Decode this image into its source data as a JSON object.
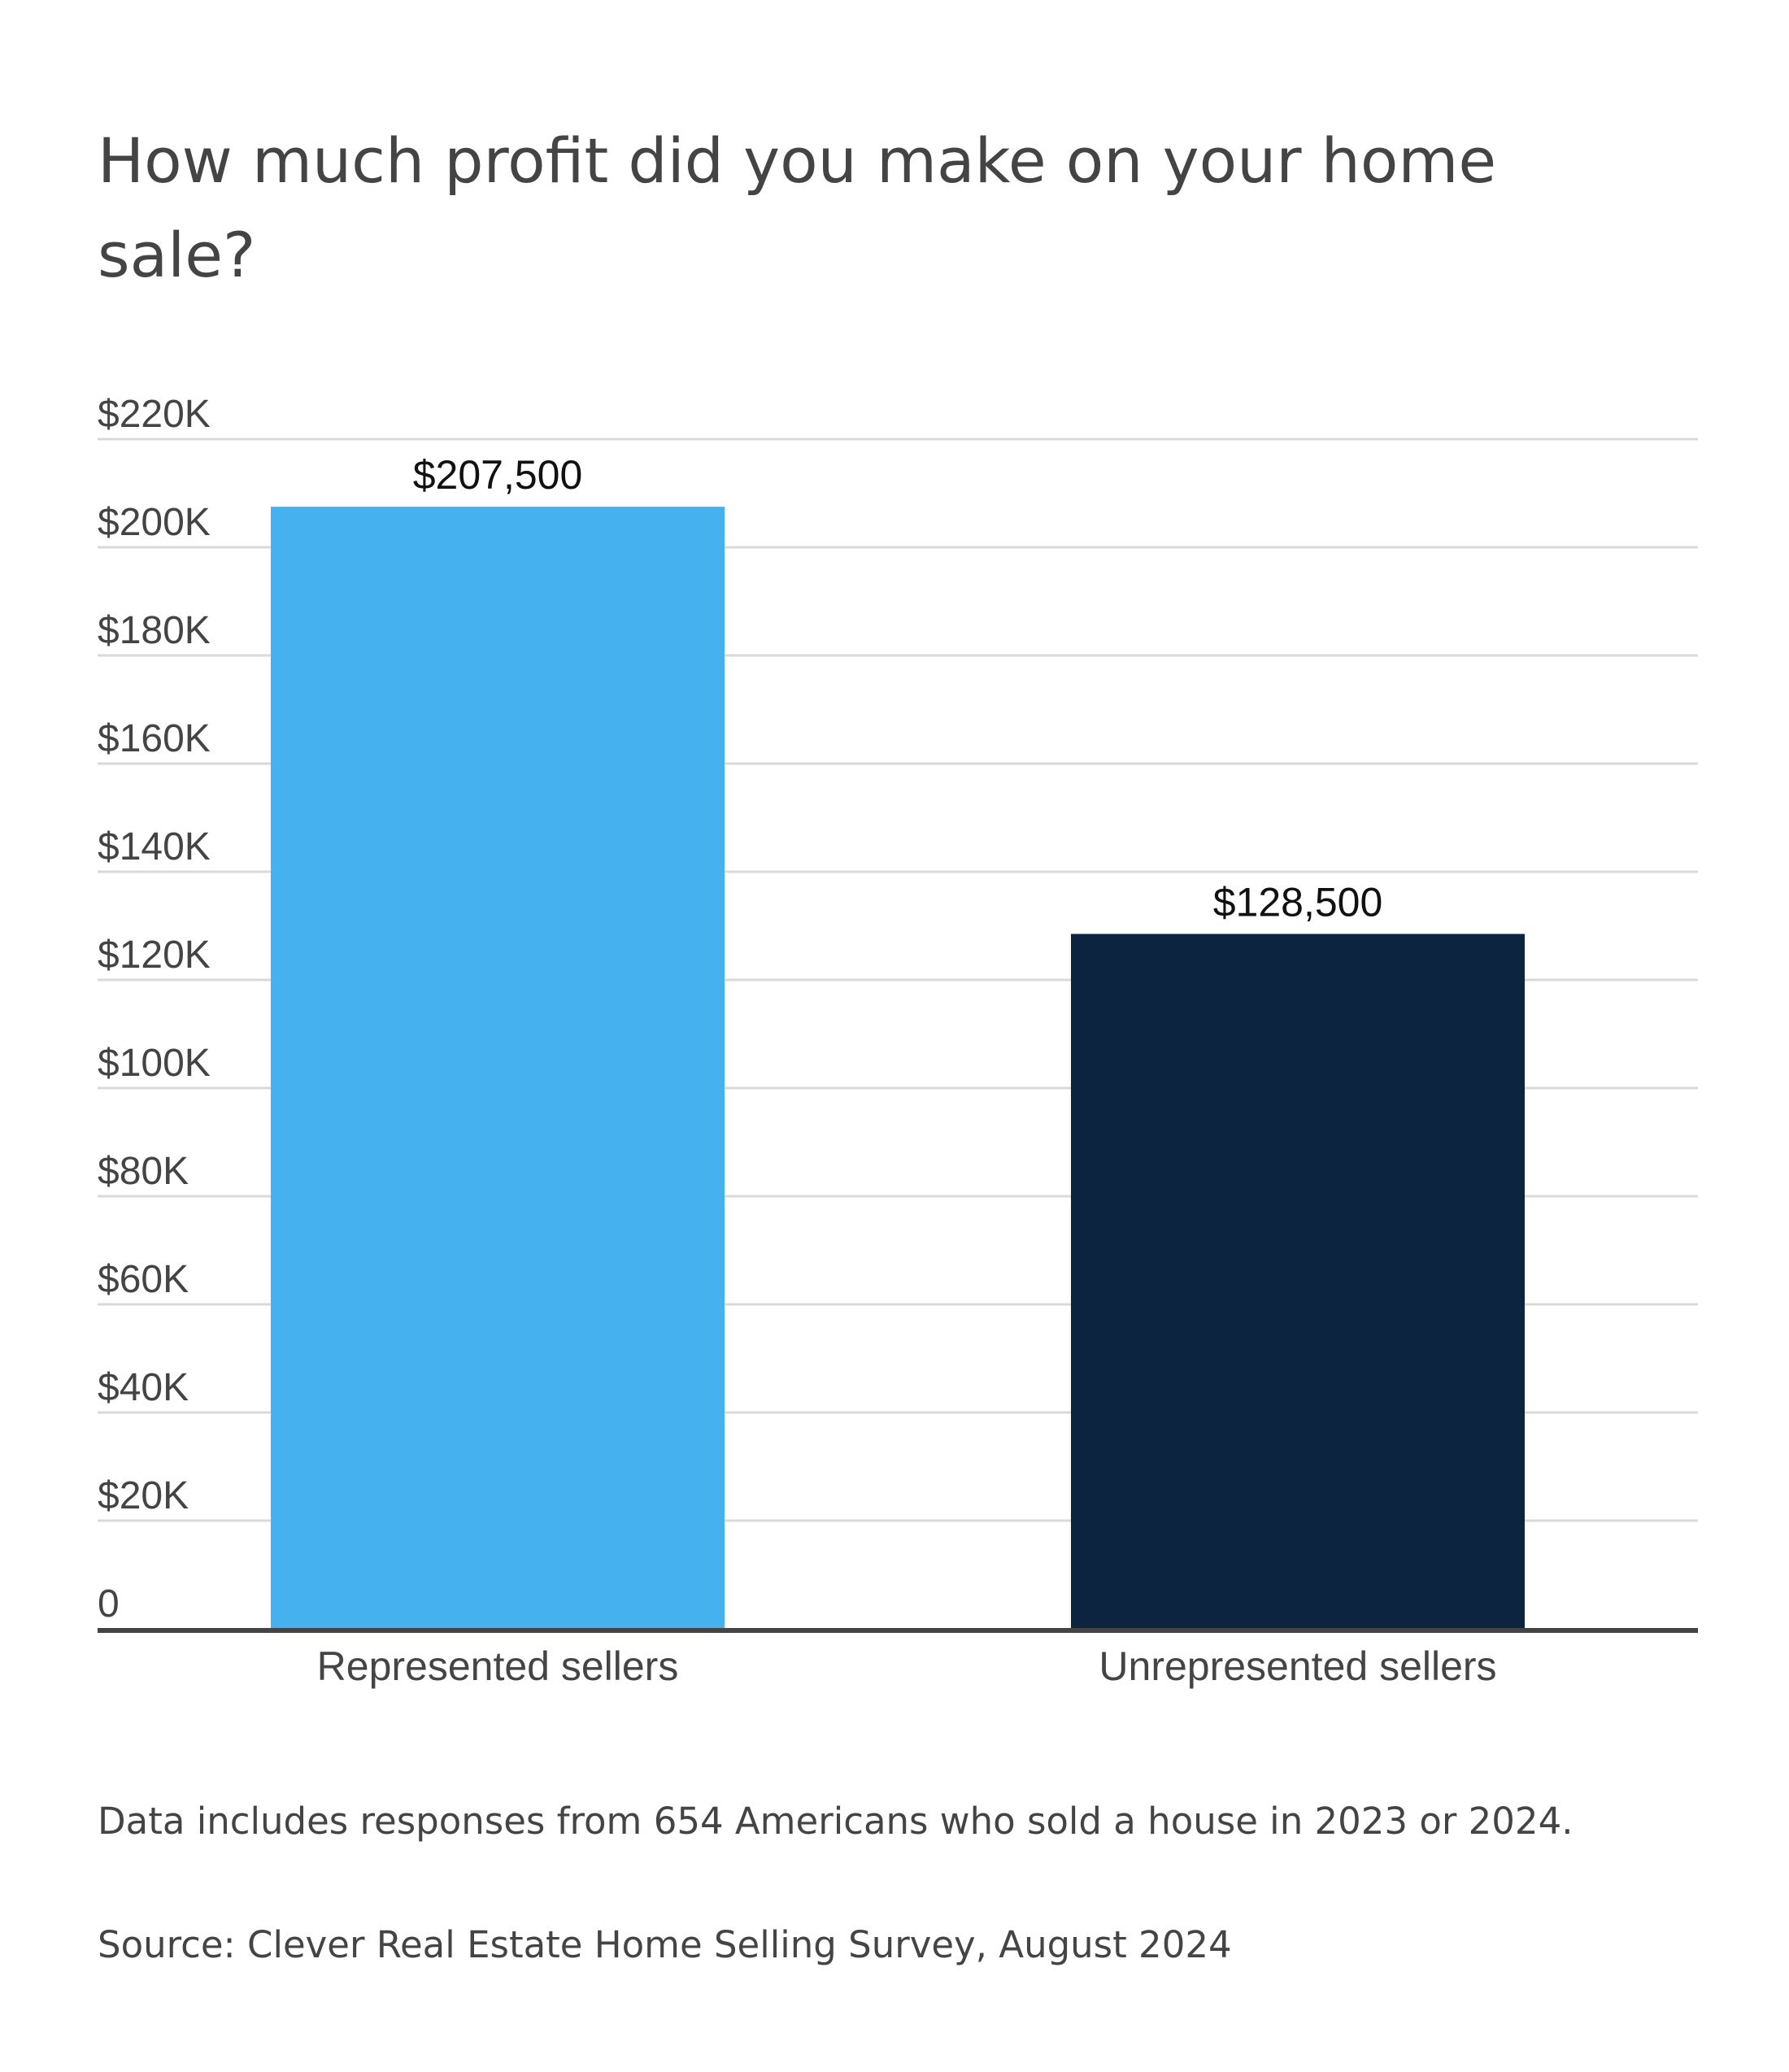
{
  "title": "How much profit did you make on your home sale?",
  "footnote": "Data includes responses from 654 Americans who sold a house in 2023 or 2024.",
  "source": "Source: Clever Real Estate Home Selling Survey, August 2024",
  "chart_data": {
    "type": "bar",
    "title": "How much profit did you make on your home sale?",
    "xlabel": "",
    "ylabel": "",
    "categories": [
      "Represented sellers",
      "Unrepresented sellers"
    ],
    "values": [
      207500,
      128500
    ],
    "value_labels": [
      "$207,500",
      "$128,500"
    ],
    "colors": [
      "#45b1ee",
      "#0c2440"
    ],
    "ylim": [
      0,
      220000
    ],
    "yticks": [
      0,
      20000,
      40000,
      60000,
      80000,
      100000,
      120000,
      140000,
      160000,
      180000,
      200000,
      220000
    ],
    "ytick_labels": [
      "0",
      "$20K",
      "$40K",
      "$60K",
      "$80K",
      "$100K",
      "$120K",
      "$140K",
      "$160K",
      "$180K",
      "$200K",
      "$220K"
    ],
    "grid": true,
    "legend": "none"
  }
}
